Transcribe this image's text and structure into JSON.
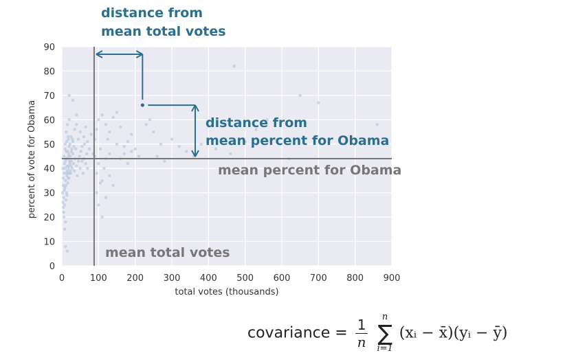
{
  "chart_data": {
    "type": "scatter",
    "xlabel": "total votes (thousands)",
    "ylabel": "percent of vote for Obama",
    "xlim": [
      0,
      900
    ],
    "ylim": [
      0,
      90
    ],
    "xticks": [
      "0",
      "100",
      "200",
      "300",
      "400",
      "500",
      "600",
      "700",
      "800",
      "900"
    ],
    "yticks": [
      "0",
      "10",
      "20",
      "30",
      "40",
      "50",
      "60",
      "70",
      "80",
      "90"
    ],
    "grid": true,
    "mean_total_votes": 88,
    "mean_percent_obama": 44,
    "highlight_point": {
      "x": 220,
      "y": 66
    },
    "points": [
      [
        5,
        28
      ],
      [
        8,
        32
      ],
      [
        10,
        35
      ],
      [
        12,
        38
      ],
      [
        14,
        41
      ],
      [
        15,
        44
      ],
      [
        16,
        47
      ],
      [
        18,
        40
      ],
      [
        20,
        36
      ],
      [
        22,
        42
      ],
      [
        6,
        45
      ],
      [
        9,
        50
      ],
      [
        11,
        33
      ],
      [
        13,
        30
      ],
      [
        17,
        38
      ],
      [
        19,
        46
      ],
      [
        21,
        43
      ],
      [
        23,
        39
      ],
      [
        25,
        41
      ],
      [
        27,
        48
      ],
      [
        3,
        26
      ],
      [
        4,
        36
      ],
      [
        7,
        42
      ],
      [
        9,
        40
      ],
      [
        12,
        44
      ],
      [
        14,
        37
      ],
      [
        16,
        34
      ],
      [
        18,
        45
      ],
      [
        20,
        49
      ],
      [
        24,
        38
      ],
      [
        26,
        43
      ],
      [
        28,
        40
      ],
      [
        30,
        46
      ],
      [
        32,
        42
      ],
      [
        34,
        39
      ],
      [
        36,
        44
      ],
      [
        38,
        48
      ],
      [
        40,
        41
      ],
      [
        42,
        37
      ],
      [
        45,
        43
      ],
      [
        48,
        45
      ],
      [
        50,
        40
      ],
      [
        52,
        47
      ],
      [
        55,
        43
      ],
      [
        58,
        38
      ],
      [
        60,
        44
      ],
      [
        62,
        50
      ],
      [
        65,
        42
      ],
      [
        68,
        46
      ],
      [
        70,
        40
      ],
      [
        5,
        22
      ],
      [
        8,
        25
      ],
      [
        10,
        18
      ],
      [
        12,
        55
      ],
      [
        15,
        58
      ],
      [
        18,
        52
      ],
      [
        20,
        60
      ],
      [
        25,
        53
      ],
      [
        30,
        51
      ],
      [
        35,
        56
      ],
      [
        40,
        58
      ],
      [
        45,
        52
      ],
      [
        50,
        55
      ],
      [
        55,
        49
      ],
      [
        60,
        53
      ],
      [
        65,
        57
      ],
      [
        70,
        51
      ],
      [
        75,
        48
      ],
      [
        80,
        54
      ],
      [
        85,
        46
      ],
      [
        7,
        31
      ],
      [
        11,
        27
      ],
      [
        14,
        29
      ],
      [
        9,
        48
      ],
      [
        13,
        51
      ],
      [
        17,
        53
      ],
      [
        22,
        50
      ],
      [
        26,
        47
      ],
      [
        29,
        52
      ],
      [
        33,
        49
      ],
      [
        3,
        40
      ],
      [
        6,
        38
      ],
      [
        4,
        33
      ],
      [
        10,
        43
      ],
      [
        12,
        47
      ],
      [
        15,
        39
      ],
      [
        17,
        36
      ],
      [
        19,
        41
      ],
      [
        21,
        38
      ],
      [
        23,
        45
      ],
      [
        2,
        30
      ],
      [
        4,
        24
      ],
      [
        6,
        20
      ],
      [
        8,
        15
      ],
      [
        10,
        8
      ],
      [
        15,
        6
      ],
      [
        20,
        70
      ],
      [
        30,
        68
      ],
      [
        40,
        62
      ],
      [
        90,
        45
      ],
      [
        95,
        38
      ],
      [
        100,
        42
      ],
      [
        105,
        48
      ],
      [
        110,
        35
      ],
      [
        115,
        40
      ],
      [
        120,
        44
      ],
      [
        125,
        52
      ],
      [
        130,
        46
      ],
      [
        140,
        33
      ],
      [
        150,
        50
      ],
      [
        100,
        60
      ],
      [
        110,
        62
      ],
      [
        120,
        58
      ],
      [
        130,
        55
      ],
      [
        140,
        61
      ],
      [
        150,
        63
      ],
      [
        160,
        57
      ],
      [
        170,
        49
      ],
      [
        180,
        51
      ],
      [
        190,
        54
      ],
      [
        200,
        48
      ],
      [
        210,
        45
      ],
      [
        95,
        30
      ],
      [
        100,
        25
      ],
      [
        105,
        34
      ],
      [
        110,
        20
      ],
      [
        120,
        28
      ],
      [
        130,
        37
      ],
      [
        90,
        52
      ],
      [
        95,
        56
      ],
      [
        160,
        44
      ],
      [
        170,
        46
      ],
      [
        180,
        42
      ],
      [
        190,
        47
      ],
      [
        230,
        58
      ],
      [
        240,
        60
      ],
      [
        250,
        55
      ],
      [
        260,
        45
      ],
      [
        270,
        50
      ],
      [
        280,
        43
      ],
      [
        300,
        52
      ],
      [
        320,
        49
      ],
      [
        340,
        47
      ],
      [
        360,
        45
      ],
      [
        380,
        50
      ],
      [
        420,
        48
      ],
      [
        460,
        46
      ],
      [
        470,
        82
      ],
      [
        530,
        56
      ],
      [
        560,
        60
      ],
      [
        650,
        70
      ],
      [
        700,
        67
      ],
      [
        860,
        58
      ],
      [
        620,
        44
      ],
      [
        500,
        51
      ]
    ]
  },
  "annotations": {
    "x_distance_line1": "distance from",
    "x_distance_line2": "mean total votes",
    "y_distance_line1": "distance from",
    "y_distance_line2": "mean percent for Obama",
    "mean_percent_label": "mean percent for Obama",
    "mean_votes_label": "mean total votes"
  },
  "formula": {
    "label": "covariance",
    "equals": "=",
    "frac_num": "1",
    "frac_den": "n",
    "sum_upper": "n",
    "sum_symbol": "∑",
    "sum_lower": "i=1",
    "term": "(xᵢ − x̄)(yᵢ − ȳ)"
  },
  "colors": {
    "plot_bg": "#eaeaf2",
    "grid": "#ffffff",
    "point": "#b8c8de",
    "mean_line": "#777777",
    "annotation_blue": "#2a6f8f"
  }
}
